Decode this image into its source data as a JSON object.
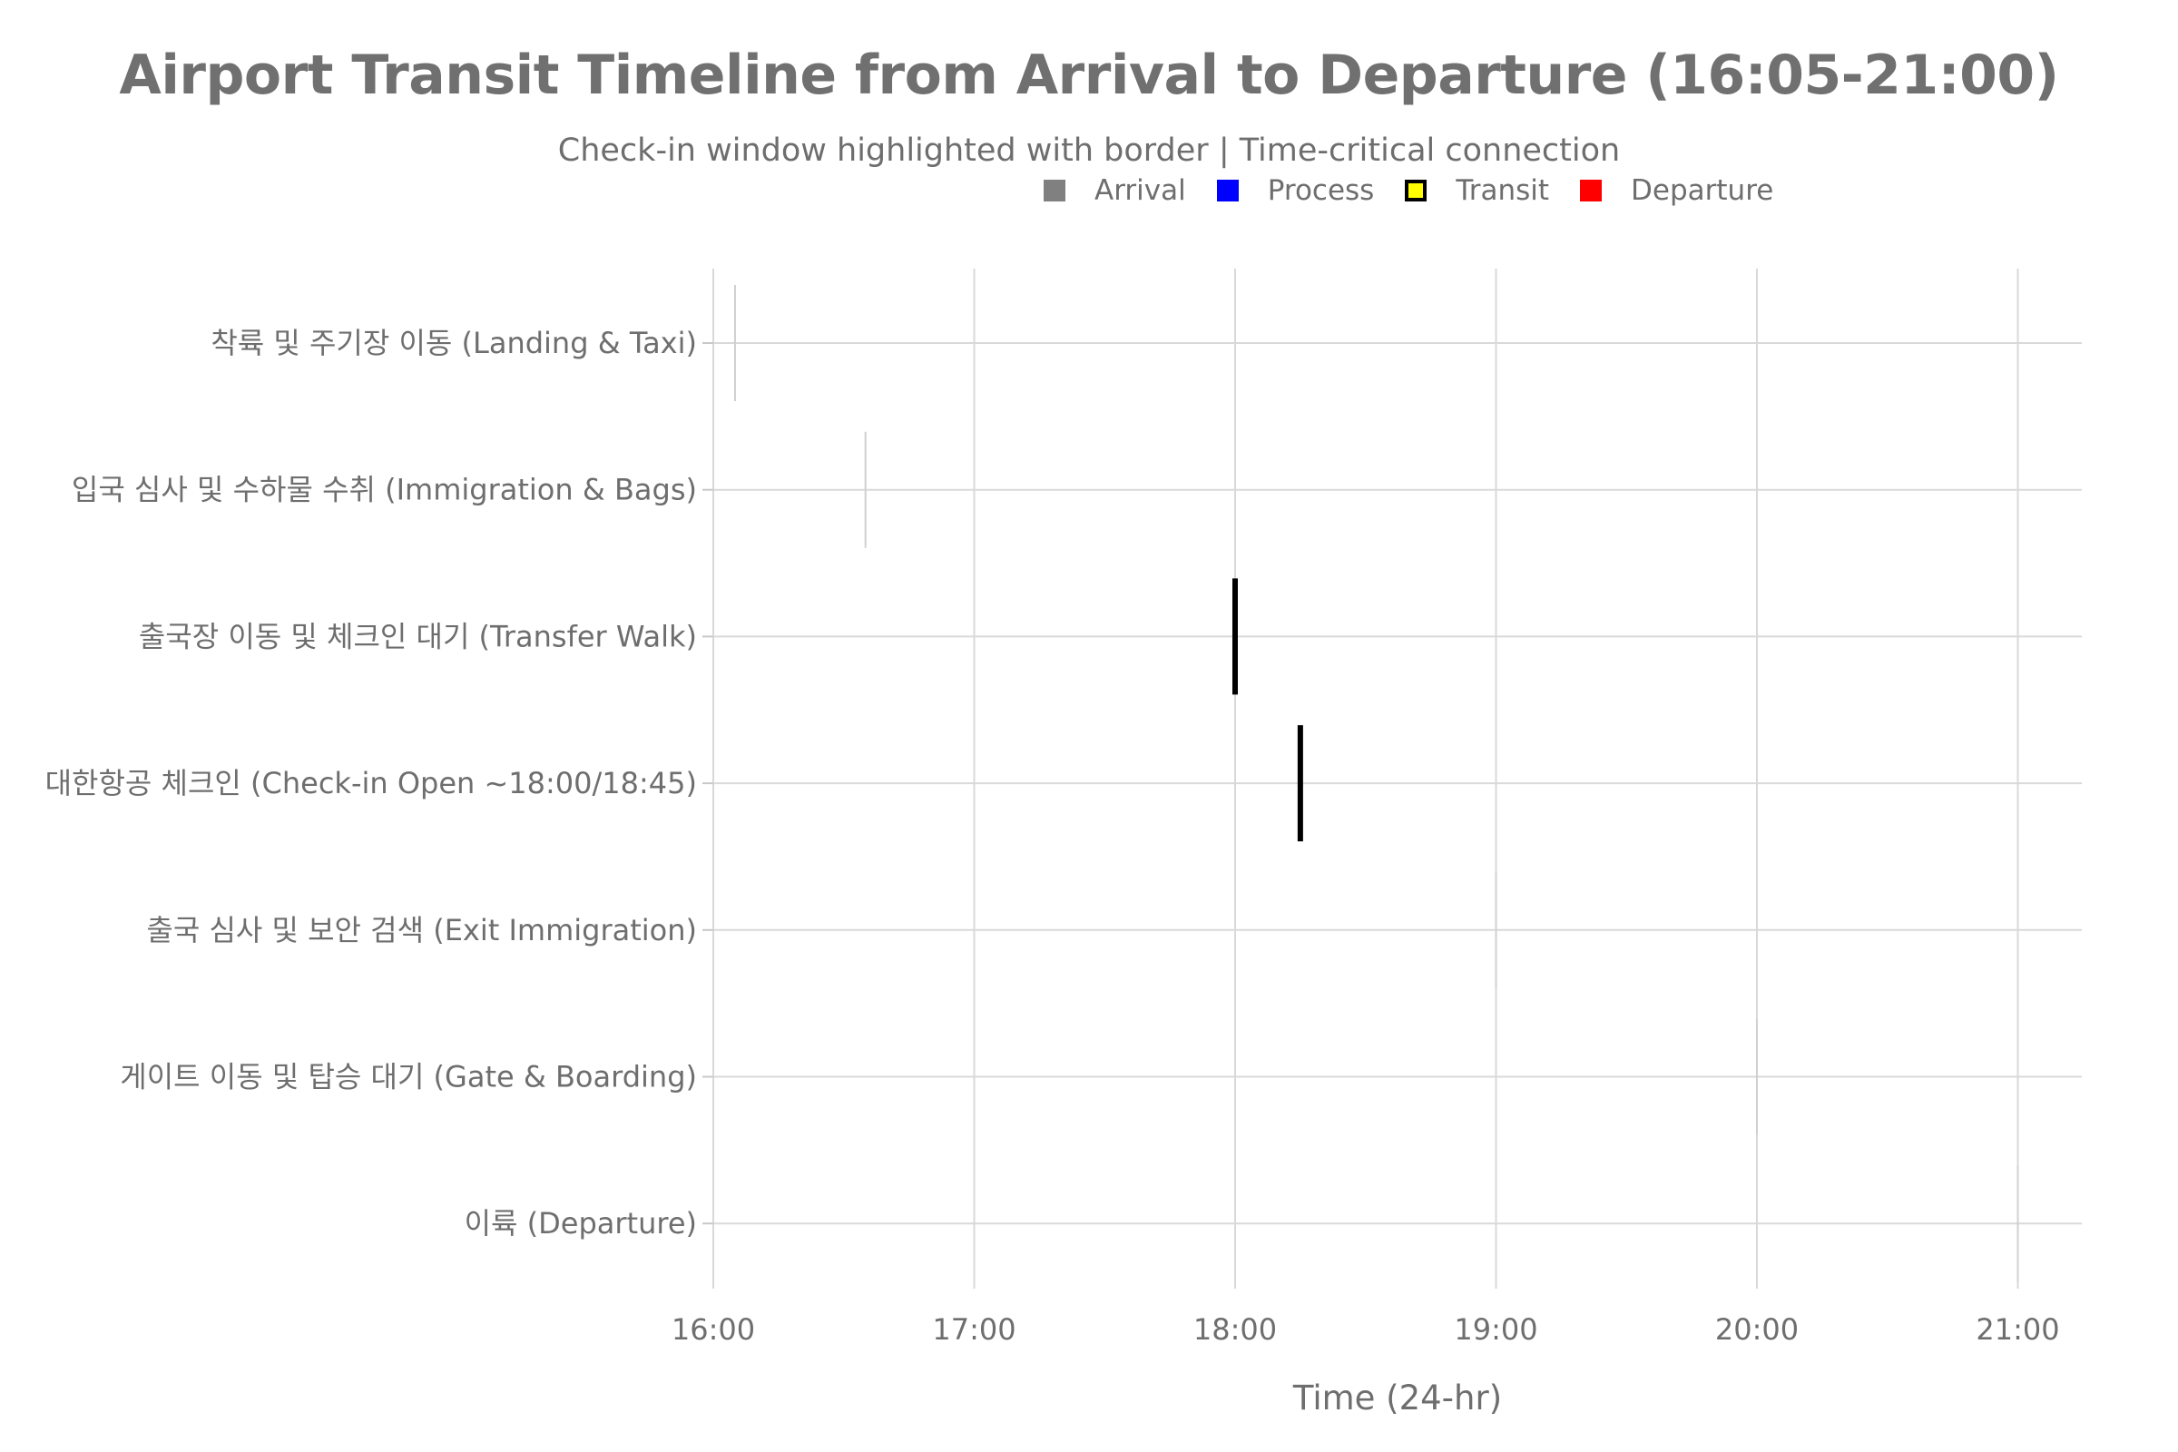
{
  "chart_data": {
    "type": "gantt",
    "title": "Airport Transit Timeline from Arrival to Departure (16:05-21:00)",
    "subtitle": "Check-in window highlighted with border | Time-critical connection",
    "xlabel": "Time (24-hr)",
    "ylabel": "",
    "xlim": [
      "16:00",
      "21:15"
    ],
    "x_ticks": [
      "16:00",
      "17:00",
      "18:00",
      "19:00",
      "20:00",
      "21:00"
    ],
    "grid": true,
    "legend": {
      "position": "top-right",
      "entries": [
        {
          "label": "Arrival",
          "color": "#808080",
          "border": false
        },
        {
          "label": "Process",
          "color": "#0000ff",
          "border": false
        },
        {
          "label": "Transit",
          "color": "#ffff00",
          "border": true
        },
        {
          "label": "Departure",
          "color": "#ff0000",
          "border": false
        }
      ]
    },
    "tasks": [
      {
        "label": "착륙 및 주기장 이동 (Landing & Taxi)",
        "start": "16:05",
        "category": "Arrival",
        "color": "#d0d0d0",
        "emphasis": false
      },
      {
        "label": "입국 심사 및 수하물 수취 (Immigration & Bags)",
        "start": "16:35",
        "category": "Process",
        "color": "#d0d0d0",
        "emphasis": false
      },
      {
        "label": "출국장 이동 및 체크인 대기 (Transfer Walk)",
        "start": "18:00",
        "category": "Transit",
        "color": "#000000",
        "emphasis": true
      },
      {
        "label": "대한항공 체크인 (Check-in Open ~18:00/18:45)",
        "start": "18:15",
        "category": "Process",
        "color": "#000000",
        "emphasis": true
      },
      {
        "label": "출국 심사 및 보안 검색 (Exit Immigration)",
        "start": "19:00",
        "category": "Process",
        "color": "#d0d0d0",
        "emphasis": false
      },
      {
        "label": "게이트 이동 및 탑승 대기 (Gate & Boarding)",
        "start": "20:00",
        "category": "Departure",
        "color": "#d0d0d0",
        "emphasis": false
      },
      {
        "label": "이륙 (Departure)",
        "start": "21:00",
        "category": "Departure",
        "color": "#d0d0d0",
        "emphasis": false
      }
    ]
  }
}
